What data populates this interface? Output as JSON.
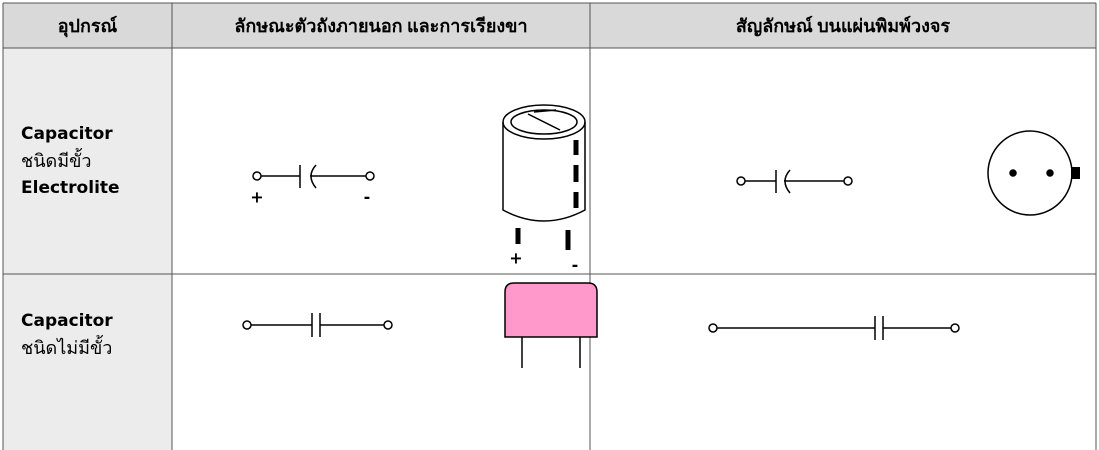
{
  "table": {
    "headers": [
      "อุปกรณ์",
      "ลักษณะตัวถังภายนอก และการเรียงขา",
      "สัญลักษณ์ บนแผ่นพิมพ์วงจร"
    ],
    "rows": [
      {
        "name": [
          "Capacitor",
          "ชนิดมีขั้ว",
          "Electrolite"
        ],
        "symbol_labels": [
          "+",
          "-"
        ],
        "body_labels": [
          "+",
          "-"
        ]
      },
      {
        "name": [
          "Capacitor",
          "ชนิดไม่มีขั้ว"
        ]
      }
    ]
  }
}
